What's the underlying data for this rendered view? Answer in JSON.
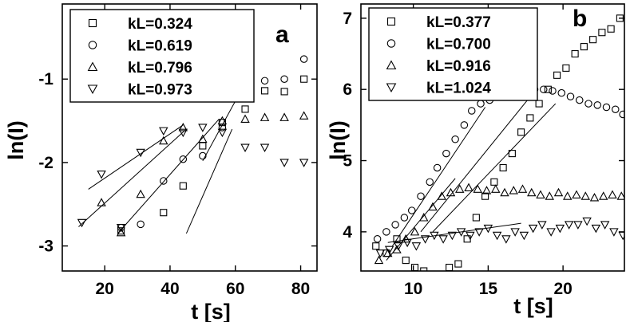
{
  "chart_data": [
    {
      "type": "scatter",
      "panel_label": "a",
      "xlabel": "t [s]",
      "ylabel": "ln(I)",
      "xlim": [
        7,
        85
      ],
      "ylim": [
        -3.3,
        -0.1
      ],
      "xticks": [
        20,
        40,
        60,
        80
      ],
      "yticks": [
        -3,
        -2,
        -1
      ],
      "legend_position": "top-left",
      "grid": false,
      "series": [
        {
          "name": "kL=0.324",
          "marker": "square",
          "x": [
            25,
            38,
            44,
            50,
            56,
            63,
            69,
            75,
            81
          ],
          "y": [
            -2.82,
            -2.6,
            -2.28,
            -1.8,
            -1.52,
            -1.36,
            -1.14,
            -1.15,
            -1.0
          ]
        },
        {
          "name": "kL=0.619",
          "marker": "circle",
          "x": [
            25,
            31,
            38,
            44,
            50,
            56,
            63,
            69,
            75,
            81
          ],
          "y": [
            -2.78,
            -2.74,
            -2.22,
            -1.96,
            -1.92,
            -1.58,
            -1.1,
            -1.02,
            -1.0,
            -0.76
          ]
        },
        {
          "name": "kL=0.796",
          "marker": "triangle-up",
          "x": [
            19,
            25,
            31,
            38,
            44,
            50,
            56,
            63,
            69,
            75,
            81
          ],
          "y": [
            -2.48,
            -2.84,
            -2.38,
            -1.74,
            -1.58,
            -1.72,
            -1.5,
            -1.48,
            -1.46,
            -1.46,
            -1.44
          ]
        },
        {
          "name": "kL=0.973",
          "marker": "triangle-down",
          "x": [
            13,
            19,
            25,
            31,
            38,
            44,
            50,
            56,
            63,
            69,
            75,
            81
          ],
          "y": [
            -2.72,
            -2.14,
            -2.78,
            -1.88,
            -1.62,
            -1.64,
            -1.58,
            -1.64,
            -1.82,
            -1.82,
            -2.0,
            -2.0
          ]
        }
      ],
      "fit_lines": [
        {
          "x": [
            45,
            59
          ],
          "y": [
            -2.85,
            -1.6
          ]
        },
        {
          "x": [
            24,
            55
          ],
          "y": [
            -2.85,
            -1.48
          ]
        },
        {
          "x": [
            12,
            45
          ],
          "y": [
            -2.77,
            -1.6
          ]
        },
        {
          "x": [
            15,
            44
          ],
          "y": [
            -2.32,
            -1.55
          ]
        },
        {
          "x": [
            50,
            62
          ],
          "y": [
            -1.98,
            -1.12
          ]
        }
      ]
    },
    {
      "type": "scatter",
      "panel_label": "b",
      "xlabel": "t [s]",
      "ylabel": "ln(I)",
      "xlim": [
        6.5,
        24.1
      ],
      "ylim": [
        3.45,
        7.2
      ],
      "xticks": [
        10,
        15,
        20
      ],
      "yticks": [
        4,
        5,
        6,
        7
      ],
      "legend_position": "top-left",
      "grid": false,
      "series": [
        {
          "name": "kL=0.377",
          "marker": "square",
          "x": [
            7.5,
            8.2,
            8.9,
            9.5,
            10.1,
            10.7,
            11.3,
            11.9,
            12.4,
            13.0,
            13.6,
            14.2,
            14.8,
            15.4,
            16.0,
            16.6,
            17.2,
            17.8,
            18.4,
            19.0,
            19.6,
            20.2,
            20.8,
            21.4,
            22.0,
            22.6,
            23.2,
            23.8
          ],
          "y": [
            3.8,
            3.7,
            3.9,
            3.6,
            3.5,
            3.45,
            3.3,
            3.4,
            3.5,
            3.55,
            3.9,
            4.2,
            4.5,
            4.7,
            4.9,
            5.1,
            5.4,
            5.6,
            5.8,
            6.0,
            6.2,
            6.3,
            6.5,
            6.6,
            6.7,
            6.8,
            6.85,
            7.0
          ]
        },
        {
          "name": "kL=0.700",
          "marker": "circle",
          "x": [
            7.6,
            8.2,
            8.8,
            9.4,
            9.9,
            10.5,
            11.1,
            11.6,
            12.2,
            12.8,
            13.4,
            13.9,
            14.5,
            15.1,
            15.7,
            16.3,
            16.9,
            17.5,
            18.1,
            18.7,
            19.3,
            19.9,
            20.5,
            21.1,
            21.7,
            22.3,
            22.9,
            23.5,
            24.0
          ],
          "y": [
            3.9,
            4.0,
            4.1,
            4.2,
            4.3,
            4.5,
            4.7,
            4.9,
            5.1,
            5.3,
            5.5,
            5.7,
            5.8,
            5.85,
            5.9,
            5.92,
            5.95,
            5.97,
            6.0,
            6.0,
            5.98,
            5.95,
            5.9,
            5.85,
            5.8,
            5.78,
            5.75,
            5.72,
            5.65
          ]
        },
        {
          "name": "kL=0.916",
          "marker": "triangle-up",
          "x": [
            7.7,
            8.3,
            8.9,
            9.5,
            10.1,
            10.7,
            11.3,
            11.9,
            12.5,
            13.1,
            13.7,
            14.3,
            14.9,
            15.5,
            16.1,
            16.7,
            17.3,
            17.9,
            18.5,
            19.1,
            19.7,
            20.3,
            20.9,
            21.5,
            22.1,
            22.7,
            23.3,
            23.9
          ],
          "y": [
            3.6,
            3.7,
            3.75,
            3.9,
            4.0,
            4.2,
            4.35,
            4.5,
            4.55,
            4.6,
            4.62,
            4.6,
            4.58,
            4.6,
            4.55,
            4.58,
            4.6,
            4.55,
            4.52,
            4.5,
            4.55,
            4.5,
            4.52,
            4.5,
            4.48,
            4.5,
            4.52,
            4.5
          ]
        },
        {
          "name": "kL=1.024",
          "marker": "triangle-down",
          "x": [
            7.8,
            8.4,
            9.0,
            9.6,
            10.2,
            10.8,
            11.4,
            12.0,
            12.6,
            13.2,
            13.8,
            14.4,
            15.0,
            15.6,
            16.2,
            16.8,
            17.4,
            18.0,
            18.6,
            19.2,
            19.8,
            20.4,
            21.0,
            21.6,
            22.2,
            22.8,
            23.4,
            24.0
          ],
          "y": [
            3.7,
            3.75,
            3.8,
            3.85,
            3.8,
            3.9,
            3.95,
            3.9,
            3.95,
            4.0,
            3.95,
            4.0,
            4.05,
            3.95,
            3.9,
            4.0,
            3.95,
            4.05,
            4.1,
            4.0,
            4.05,
            4.1,
            4.1,
            4.15,
            4.05,
            4.1,
            4.0,
            3.95
          ]
        }
      ],
      "fit_lines": [
        {
          "x": [
            8.6,
            14.8
          ],
          "y": [
            3.8,
            5.75
          ]
        },
        {
          "x": [
            10.5,
            18.2
          ],
          "y": [
            4.0,
            6.0
          ]
        },
        {
          "x": [
            8.2,
            12.8
          ],
          "y": [
            3.6,
            4.75
          ]
        },
        {
          "x": [
            11.3,
            19.5
          ],
          "y": [
            4.0,
            5.8
          ]
        },
        {
          "x": [
            8.3,
            17.2
          ],
          "y": [
            3.85,
            4.12
          ]
        }
      ]
    }
  ]
}
